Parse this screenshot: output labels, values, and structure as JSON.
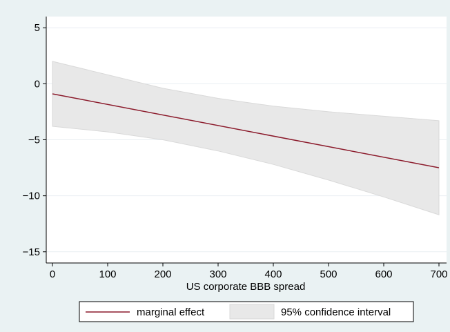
{
  "chart_data": {
    "type": "area",
    "xlabel": "US corporate BBB spread",
    "ylabel": "",
    "xlim": [
      0,
      700
    ],
    "ylim": [
      -15,
      5
    ],
    "x_ticks": [
      "0",
      "100",
      "200",
      "300",
      "400",
      "500",
      "600",
      "700"
    ],
    "y_ticks": [
      "5",
      "0",
      "−5",
      "−10",
      "−15"
    ],
    "grid": "horizontal",
    "legend_position": "bottom",
    "series": [
      {
        "name": "marginal effect",
        "kind": "line",
        "x": [
          0,
          700
        ],
        "y": [
          -0.9,
          -7.5
        ]
      },
      {
        "name": "95% confidence interval",
        "kind": "band",
        "x": [
          0,
          100,
          200,
          300,
          400,
          500,
          600,
          700
        ],
        "upper": [
          2.0,
          0.8,
          -0.4,
          -1.3,
          -2.0,
          -2.5,
          -2.9,
          -3.3
        ],
        "lower": [
          -3.8,
          -4.3,
          -5.0,
          -6.0,
          -7.2,
          -8.6,
          -10.1,
          -11.7
        ]
      }
    ],
    "colors": {
      "line": "#8b1a2b",
      "band": "#e8e8e8",
      "band_stroke": "#d9d9d9",
      "grid": "#e9eef2",
      "plot_bg": "#ffffff",
      "outer_bg": "#eaf2f3"
    }
  }
}
